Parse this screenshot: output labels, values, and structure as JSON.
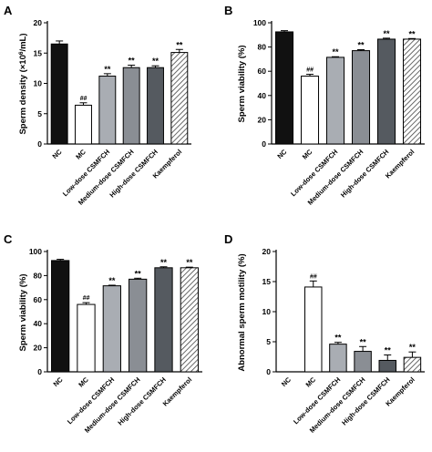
{
  "colors": {
    "nc": "#111111",
    "mc": "#ffffff",
    "low": "#a9adb3",
    "medium": "#8a8e94",
    "high": "#555a60",
    "kaempferol": "hatched"
  },
  "chart_data": [
    {
      "panel": "A",
      "type": "bar",
      "categories": [
        "NC",
        "MC",
        "Low-dose CSMFCH",
        "Medium-dose CSMFCH",
        "High-dose CSMFCH",
        "Kaempferol"
      ],
      "values": [
        16.5,
        6.4,
        11.2,
        12.6,
        12.6,
        15.1
      ],
      "errors": [
        0.5,
        0.4,
        0.4,
        0.4,
        0.3,
        0.5
      ],
      "significance": [
        "",
        "##",
        "**",
        "**",
        "**",
        "**"
      ],
      "ylabel_pre": "Sperm density (×10",
      "ylabel_sup": "6",
      "ylabel_post": "/mL)",
      "ylim": [
        0,
        20
      ],
      "yticks": [
        0,
        5,
        10,
        15,
        20
      ]
    },
    {
      "panel": "B",
      "type": "bar",
      "categories": [
        "NC",
        "MC",
        "Low-dose CSMFCH",
        "Medium-dose CSMFCH",
        "High-dose CSMFCH",
        "Kaempferol"
      ],
      "values": [
        92.5,
        56.0,
        71.5,
        77.0,
        86.5,
        86.5
      ],
      "errors": [
        1.0,
        1.5,
        0.5,
        0.8,
        0.8,
        0.5
      ],
      "significance": [
        "",
        "##",
        "**",
        "**",
        "**",
        "**"
      ],
      "ylabel": "Sperm viability (%)",
      "ylim": [
        0,
        100
      ],
      "yticks": [
        0,
        20,
        40,
        60,
        80,
        100
      ]
    },
    {
      "panel": "C",
      "type": "bar",
      "categories": [
        "NC",
        "MC",
        "Low-dose CSMFCH",
        "Medium-dose CSMFCH",
        "High-dose CSMFCH",
        "Kaempferol"
      ],
      "values": [
        92.5,
        56.0,
        71.5,
        77.0,
        86.5,
        86.5
      ],
      "errors": [
        1.0,
        1.5,
        0.5,
        0.8,
        0.8,
        0.5
      ],
      "significance": [
        "",
        "##",
        "**",
        "**",
        "**",
        "**"
      ],
      "ylabel": "Sperm viability (%)",
      "ylim": [
        0,
        100
      ],
      "yticks": [
        0,
        20,
        40,
        60,
        80,
        100
      ]
    },
    {
      "panel": "D",
      "type": "bar",
      "categories": [
        "NC",
        "MC",
        "Low-dose CSMFCH",
        "Medium-dose CSMFCH",
        "High-dose CSMFCH",
        "Kaempferol"
      ],
      "values": [
        0,
        14.1,
        4.6,
        3.4,
        1.9,
        2.4
      ],
      "errors": [
        0,
        1.0,
        0.3,
        0.8,
        0.9,
        0.9
      ],
      "significance": [
        "",
        "##",
        "**",
        "**",
        "**",
        "**"
      ],
      "ylabel": "Abnormal sperm motility (%)",
      "ylim": [
        0,
        20
      ],
      "yticks": [
        0,
        5,
        10,
        15,
        20
      ]
    }
  ]
}
